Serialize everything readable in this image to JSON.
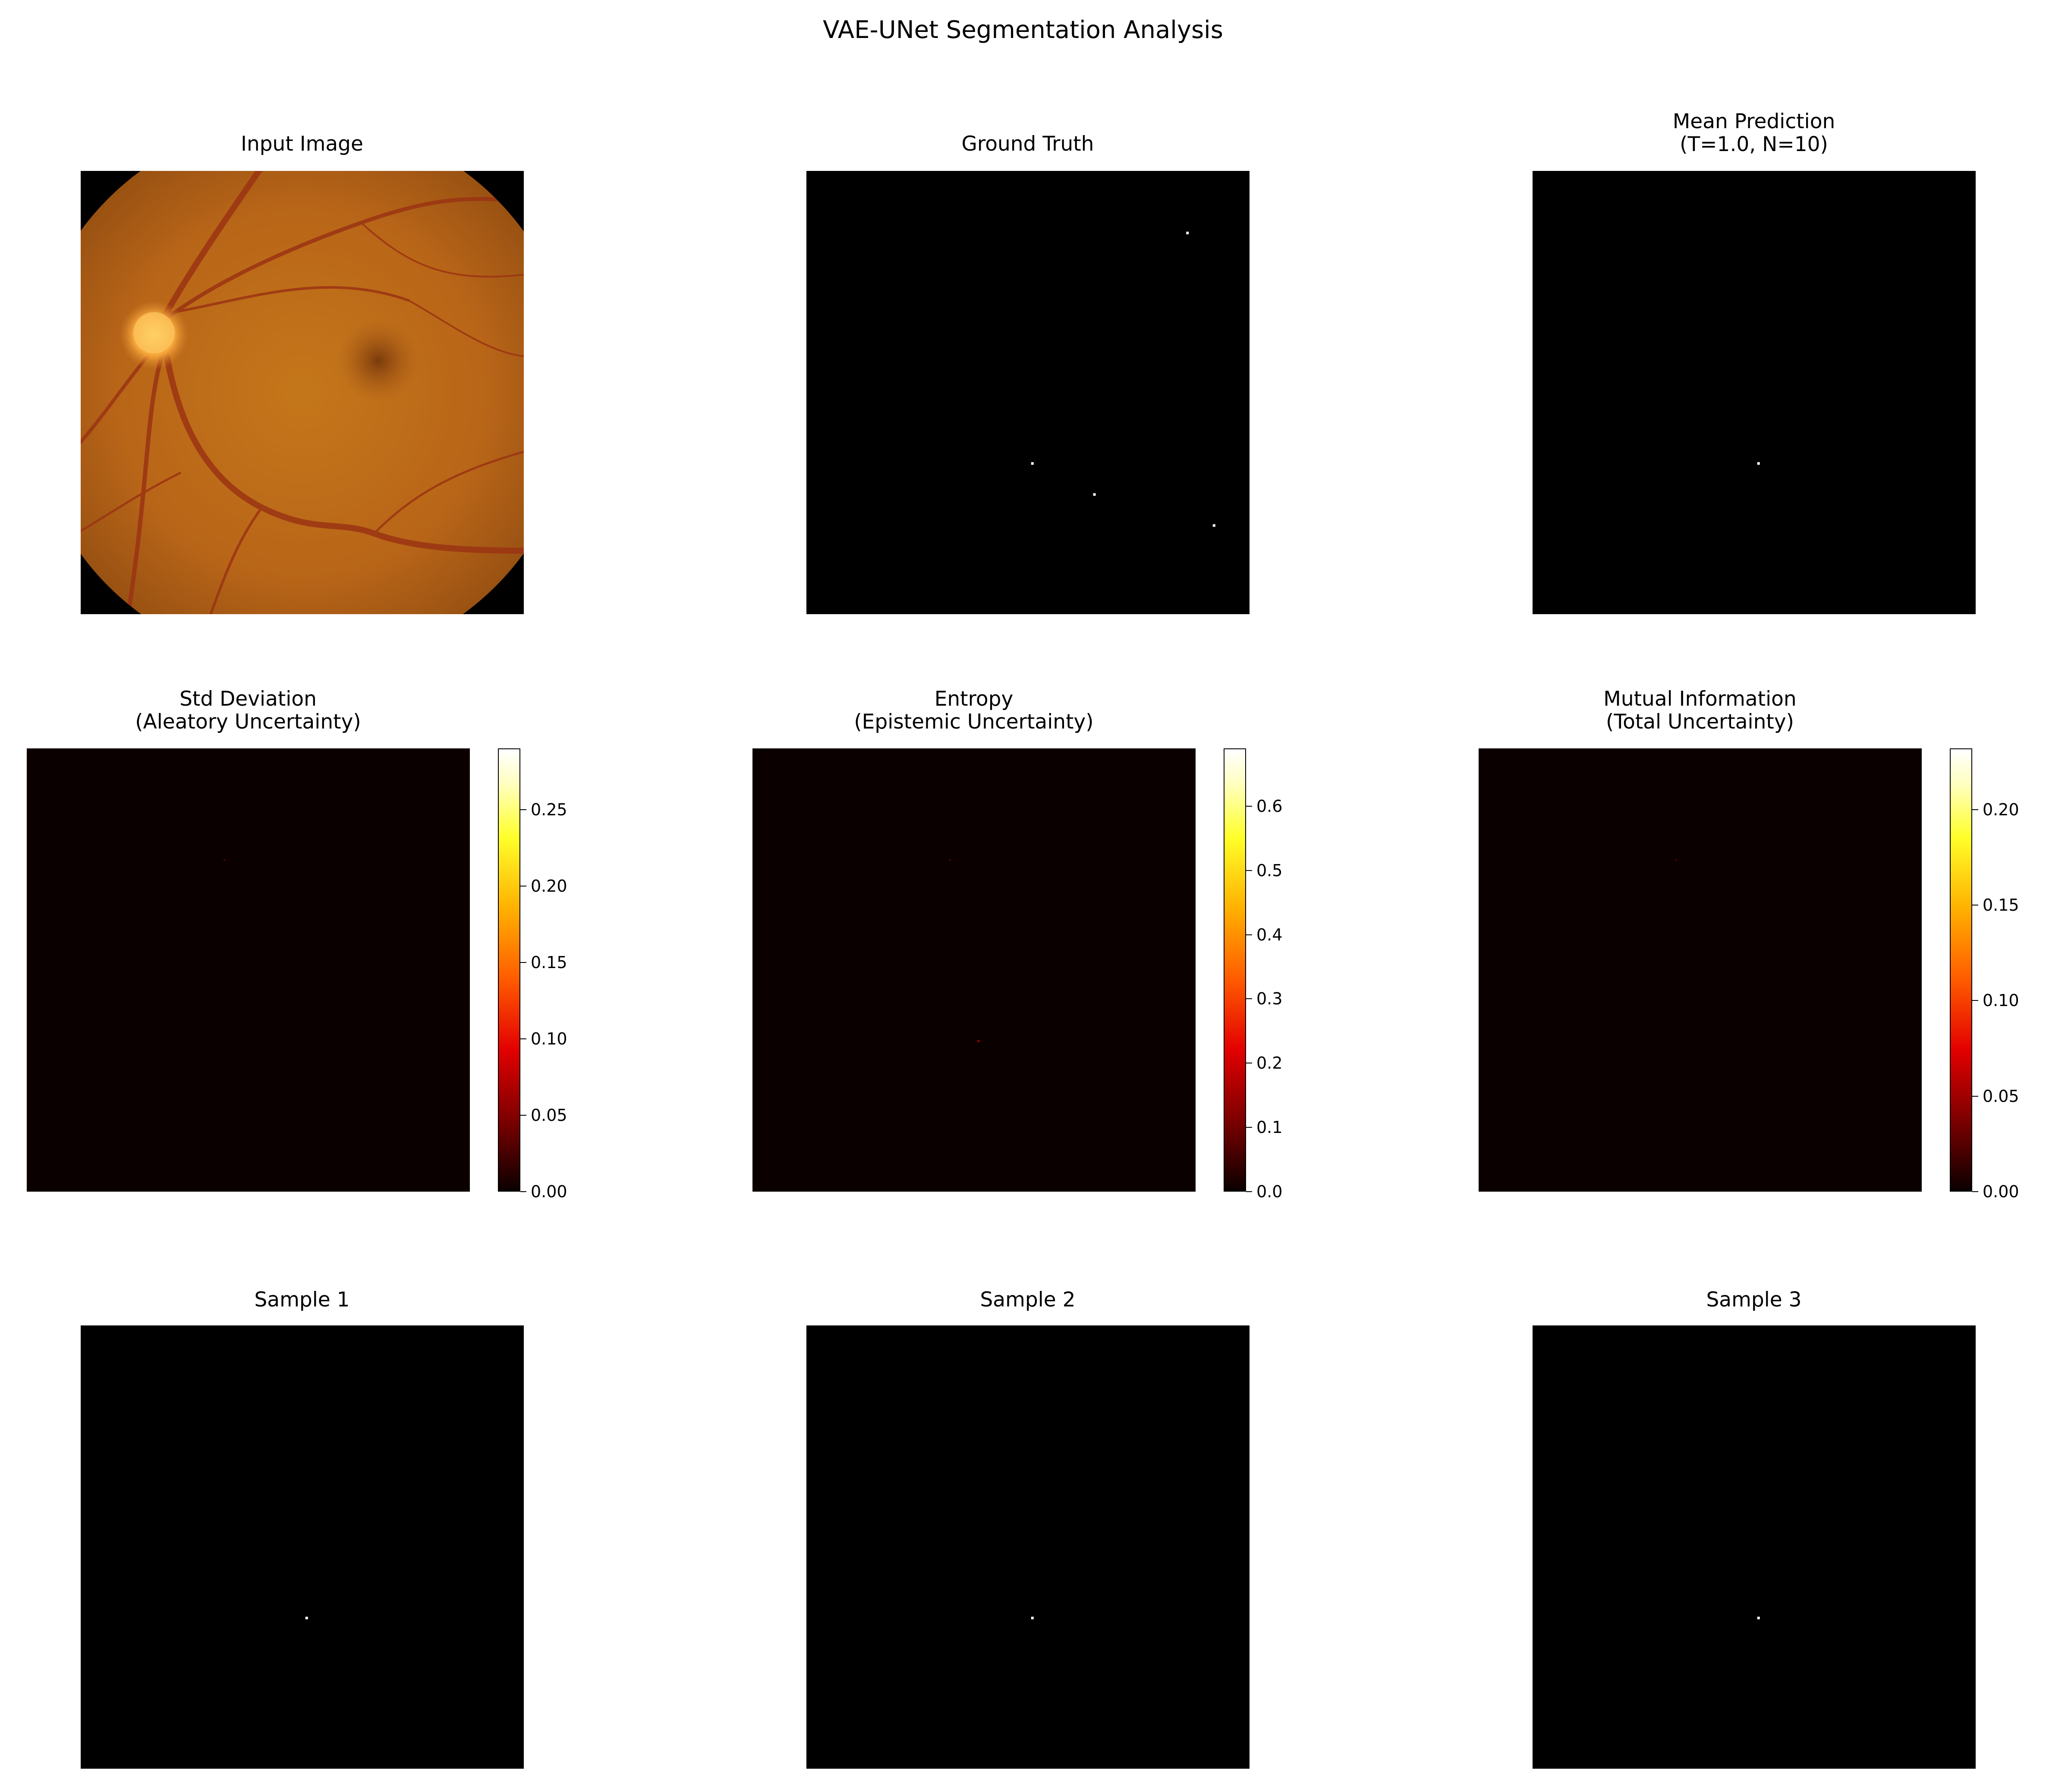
{
  "figure": {
    "title": "VAE-UNet Segmentation Analysis"
  },
  "panels": [
    {
      "id": "input-image",
      "title": "Input Image"
    },
    {
      "id": "ground-truth",
      "title": "Ground Truth"
    },
    {
      "id": "mean-prediction",
      "title": "Mean Prediction\n(T=1.0, N=10)"
    },
    {
      "id": "std-deviation",
      "title": "Std Deviation\n(Aleatory Uncertainty)"
    },
    {
      "id": "entropy",
      "title": "Entropy\n(Epistemic Uncertainty)"
    },
    {
      "id": "mutual-information",
      "title": "Mutual Information\n(Total Uncertainty)"
    },
    {
      "id": "sample-1",
      "title": "Sample 1"
    },
    {
      "id": "sample-2",
      "title": "Sample 2"
    },
    {
      "id": "sample-3",
      "title": "Sample 3"
    }
  ],
  "colors": {
    "heatmap_background": "#0b0000",
    "mask_background": "#000000",
    "mask_foreground": "#ffffff",
    "colormap": "hot"
  },
  "chart_data": [
    {
      "type": "heatmap",
      "panel": "ground-truth",
      "colorscale": "binary",
      "points": [
        [
          0.86,
          0.14
        ],
        [
          0.51,
          0.66
        ],
        [
          0.65,
          0.73
        ],
        [
          0.92,
          0.8
        ]
      ]
    },
    {
      "type": "heatmap",
      "panel": "mean-prediction",
      "colorscale": "binary",
      "points": [
        [
          0.51,
          0.66
        ]
      ]
    },
    {
      "type": "heatmap",
      "panel": "std-deviation",
      "colorscale": "hot",
      "colorbar": {
        "range": [
          0,
          0.29
        ],
        "ticks": [
          "0.00",
          "0.05",
          "0.10",
          "0.15",
          "0.20",
          "0.25"
        ]
      }
    },
    {
      "type": "heatmap",
      "panel": "entropy",
      "colorscale": "hot",
      "colorbar": {
        "range": [
          0,
          0.69
        ],
        "ticks": [
          "0.0",
          "0.1",
          "0.2",
          "0.3",
          "0.4",
          "0.5",
          "0.6"
        ]
      }
    },
    {
      "type": "heatmap",
      "panel": "mutual-information",
      "colorscale": "hot",
      "colorbar": {
        "range": [
          0,
          0.232
        ],
        "ticks": [
          "0.00",
          "0.05",
          "0.10",
          "0.15",
          "0.20"
        ]
      }
    },
    {
      "type": "heatmap",
      "panel": "sample-1",
      "colorscale": "binary",
      "points": [
        [
          0.51,
          0.66
        ]
      ]
    },
    {
      "type": "heatmap",
      "panel": "sample-2",
      "colorscale": "binary",
      "points": [
        [
          0.51,
          0.66
        ]
      ]
    },
    {
      "type": "heatmap",
      "panel": "sample-3",
      "colorscale": "binary",
      "points": [
        [
          0.51,
          0.66
        ]
      ]
    }
  ]
}
